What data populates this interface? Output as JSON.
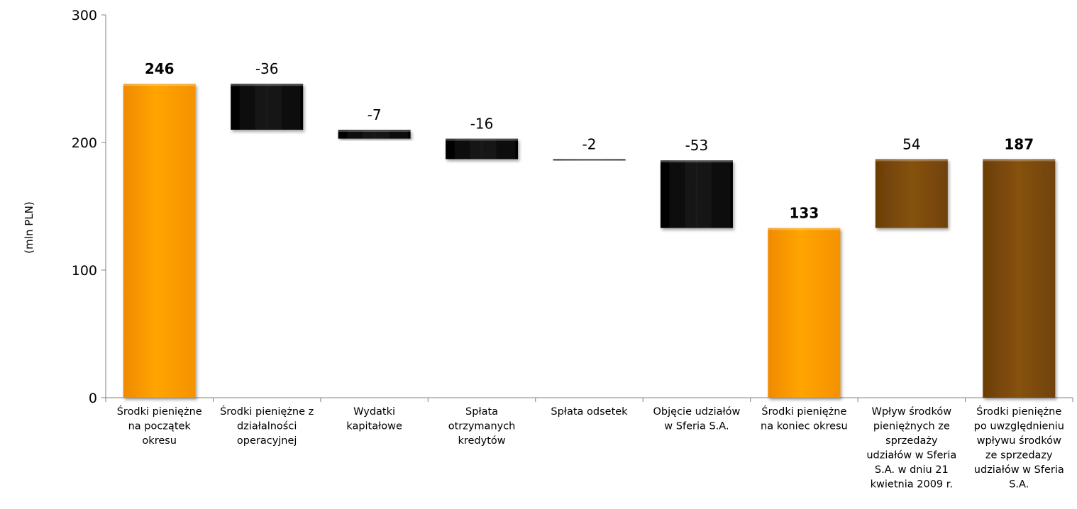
{
  "chart_data": {
    "type": "bar",
    "subtype": "waterfall",
    "ylabel": "(mln PLN)",
    "ylim": [
      0,
      300
    ],
    "yticks": [
      "0",
      "100",
      "200",
      "300"
    ],
    "grid": false,
    "legend": "none",
    "colors": {
      "total": "#FF9900",
      "negative": "#0a0a0a",
      "positive": "#7a4a0a",
      "final_total": "#7a4a0a"
    },
    "categories": [
      [
        "Środki pieniężne",
        "na początek",
        "okresu"
      ],
      [
        "Środki pieniężne z",
        "działalności",
        "operacyjnej"
      ],
      [
        "Wydatki",
        "kapitałowe"
      ],
      [
        "Spłata",
        "otrzymanych",
        "kredytów"
      ],
      [
        "Spłata odsetek"
      ],
      [
        "Objęcie udziałów",
        "w Sferia S.A."
      ],
      [
        "Środki pieniężne",
        "na koniec okresu"
      ],
      [
        "Wpływ środków",
        "pieniężnych ze",
        "sprzedaży",
        "udziałów w Sferia",
        "S.A. w dniu 21",
        "kwietnia 2009 r."
      ],
      [
        "Środki pieniężne",
        "po uwzględnieniu",
        "wpływu środków",
        "ze sprzedazy",
        "udziałów w Sferia",
        "S.A."
      ]
    ],
    "bars": [
      {
        "kind": "total",
        "base": 0,
        "top": 246,
        "label": "246",
        "bold": true,
        "color_key": "total"
      },
      {
        "kind": "delta",
        "base": 210,
        "top": 246,
        "label": "-36",
        "bold": false,
        "color_key": "negative"
      },
      {
        "kind": "delta",
        "base": 203,
        "top": 210,
        "label": "-7",
        "bold": false,
        "color_key": "negative"
      },
      {
        "kind": "delta",
        "base": 187,
        "top": 203,
        "label": "-16",
        "bold": false,
        "color_key": "negative"
      },
      {
        "kind": "delta",
        "base": 186,
        "top": 187,
        "label": "-2",
        "bold": false,
        "color_key": "negative"
      },
      {
        "kind": "delta",
        "base": 133,
        "top": 186,
        "label": "-53",
        "bold": false,
        "color_key": "negative"
      },
      {
        "kind": "total",
        "base": 0,
        "top": 133,
        "label": "133",
        "bold": true,
        "color_key": "total"
      },
      {
        "kind": "delta",
        "base": 133,
        "top": 187,
        "label": "54",
        "bold": false,
        "color_key": "positive"
      },
      {
        "kind": "total",
        "base": 0,
        "top": 187,
        "label": "187",
        "bold": true,
        "color_key": "final_total"
      }
    ]
  }
}
